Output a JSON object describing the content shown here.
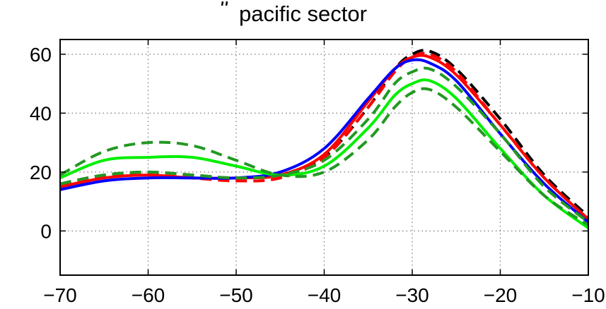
{
  "chart_data": {
    "type": "line",
    "title": "pacific sector",
    "xlabel": "",
    "ylabel": "",
    "xlim": [
      -70,
      -10
    ],
    "ylim": [
      -15,
      65
    ],
    "xticks": [
      -70,
      -60,
      -50,
      -40,
      -30,
      -20,
      -10
    ],
    "yticks": [
      0,
      20,
      40,
      60
    ],
    "xtick_labels": [
      "−70",
      "−60",
      "−50",
      "−40",
      "−30",
      "−20",
      "−10"
    ],
    "ytick_labels": [
      "0",
      "20",
      "40",
      "60"
    ],
    "grid": true,
    "series": [
      {
        "color": "#000000",
        "dash": "dashed",
        "x": [
          -70,
          -65,
          -60,
          -55,
          -50,
          -45,
          -40,
          -35,
          -32,
          -30,
          -28,
          -25,
          -20,
          -15,
          -10
        ],
        "y": [
          16,
          19,
          20,
          19,
          18,
          19,
          25,
          42,
          55,
          60,
          61,
          55,
          38,
          19,
          5
        ]
      },
      {
        "color": "#FF0000",
        "dash": "dashed",
        "x": [
          -70,
          -65,
          -60,
          -55,
          -50,
          -45,
          -40,
          -35,
          -32,
          -30,
          -28,
          -25,
          -20,
          -15,
          -10
        ],
        "y": [
          15,
          18,
          19,
          18,
          17,
          18,
          25,
          42,
          54,
          59,
          60,
          54,
          36,
          18,
          4
        ]
      },
      {
        "color": "#FF0000",
        "dash": "solid",
        "x": [
          -70,
          -65,
          -60,
          -55,
          -50,
          -45,
          -40,
          -35,
          -32,
          -30,
          -28,
          -25,
          -20,
          -15,
          -10
        ],
        "y": [
          15,
          18,
          19,
          18,
          18,
          19,
          26,
          44,
          55,
          59,
          59,
          53,
          36,
          18,
          4
        ]
      },
      {
        "color": "#0000FF",
        "dash": "solid",
        "x": [
          -70,
          -65,
          -60,
          -55,
          -50,
          -45,
          -40,
          -35,
          -32,
          -30,
          -28,
          -25,
          -20,
          -15,
          -10
        ],
        "y": [
          14,
          17,
          18,
          18,
          18,
          20,
          28,
          45,
          55,
          58,
          57,
          51,
          33,
          16,
          3
        ]
      },
      {
        "color": "#00EE00",
        "dash": "solid",
        "x": [
          -70,
          -65,
          -60,
          -55,
          -50,
          -45,
          -40,
          -35,
          -32,
          -30,
          -28,
          -25,
          -20,
          -15,
          -10
        ],
        "y": [
          18,
          24,
          25,
          25,
          22,
          19,
          22,
          35,
          46,
          50,
          51,
          45,
          28,
          12,
          1
        ]
      },
      {
        "color": "#229922",
        "dash": "dashed",
        "x": [
          -70,
          -65,
          -60,
          -55,
          -50,
          -45,
          -40,
          -35,
          -32,
          -30,
          -28,
          -25,
          -20,
          -15,
          -10
        ],
        "y": [
          19,
          27,
          30,
          29,
          24,
          19,
          20,
          31,
          42,
          47,
          48,
          42,
          27,
          12,
          2
        ]
      },
      {
        "color": "#229922",
        "dash": "dashed",
        "x": [
          -70,
          -65,
          -60,
          -55,
          -50,
          -45,
          -40,
          -35,
          -32,
          -30,
          -28,
          -25,
          -20,
          -15,
          -10
        ],
        "y": [
          16,
          19,
          20,
          19,
          18,
          19,
          24,
          38,
          50,
          54,
          55,
          49,
          33,
          15,
          3
        ]
      }
    ]
  }
}
